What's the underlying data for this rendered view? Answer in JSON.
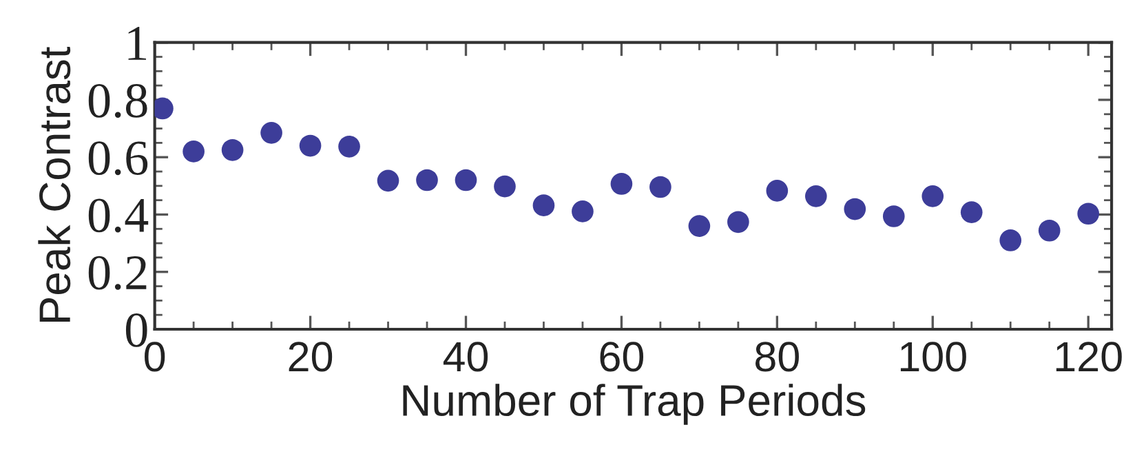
{
  "chart_data": {
    "type": "scatter",
    "xlabel": "Number of Trap Periods",
    "ylabel": "Peak Contrast",
    "x": [
      1,
      5,
      10,
      15,
      20,
      25,
      30,
      35,
      40,
      45,
      50,
      55,
      60,
      65,
      70,
      75,
      80,
      85,
      90,
      95,
      100,
      105,
      110,
      115,
      120
    ],
    "series": [
      {
        "color": "#3d3d99",
        "values": [
          0.77,
          0.62,
          0.625,
          0.685,
          0.64,
          0.637,
          0.518,
          0.52,
          0.52,
          0.498,
          0.432,
          0.411,
          0.507,
          0.496,
          0.36,
          0.374,
          0.483,
          0.464,
          0.419,
          0.394,
          0.464,
          0.408,
          0.31,
          0.344,
          0.403
        ]
      }
    ],
    "xlim": [
      0,
      123
    ],
    "xticks": [
      0,
      20,
      40,
      60,
      80,
      100,
      120
    ],
    "ylim": [
      0,
      1
    ],
    "yticks": [
      0,
      0.2,
      0.4,
      0.6,
      0.8,
      1
    ],
    "marker": "circle",
    "grid": false,
    "legend": false
  }
}
